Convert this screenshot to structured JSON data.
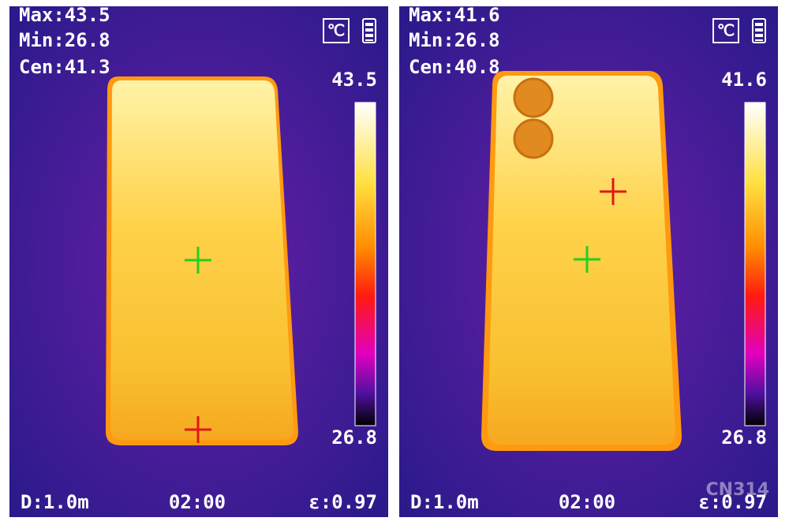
{
  "panels": [
    {
      "max": "Max:43.5",
      "min": "Min:26.8",
      "cen": "Cen:41.3",
      "unit": "℃",
      "scale_max": "43.5",
      "scale_min": "26.8",
      "distance": "D:1.0m",
      "time": "02:00",
      "emissivity": "ε:0.97"
    },
    {
      "max": "Max:41.6",
      "min": "Min:26.8",
      "cen": "Cen:40.8",
      "unit": "℃",
      "scale_max": "41.6",
      "scale_min": "26.8",
      "distance": "D:1.0m",
      "time": "02:00",
      "emissivity": "ε:0.97"
    }
  ],
  "watermark": "CN314"
}
